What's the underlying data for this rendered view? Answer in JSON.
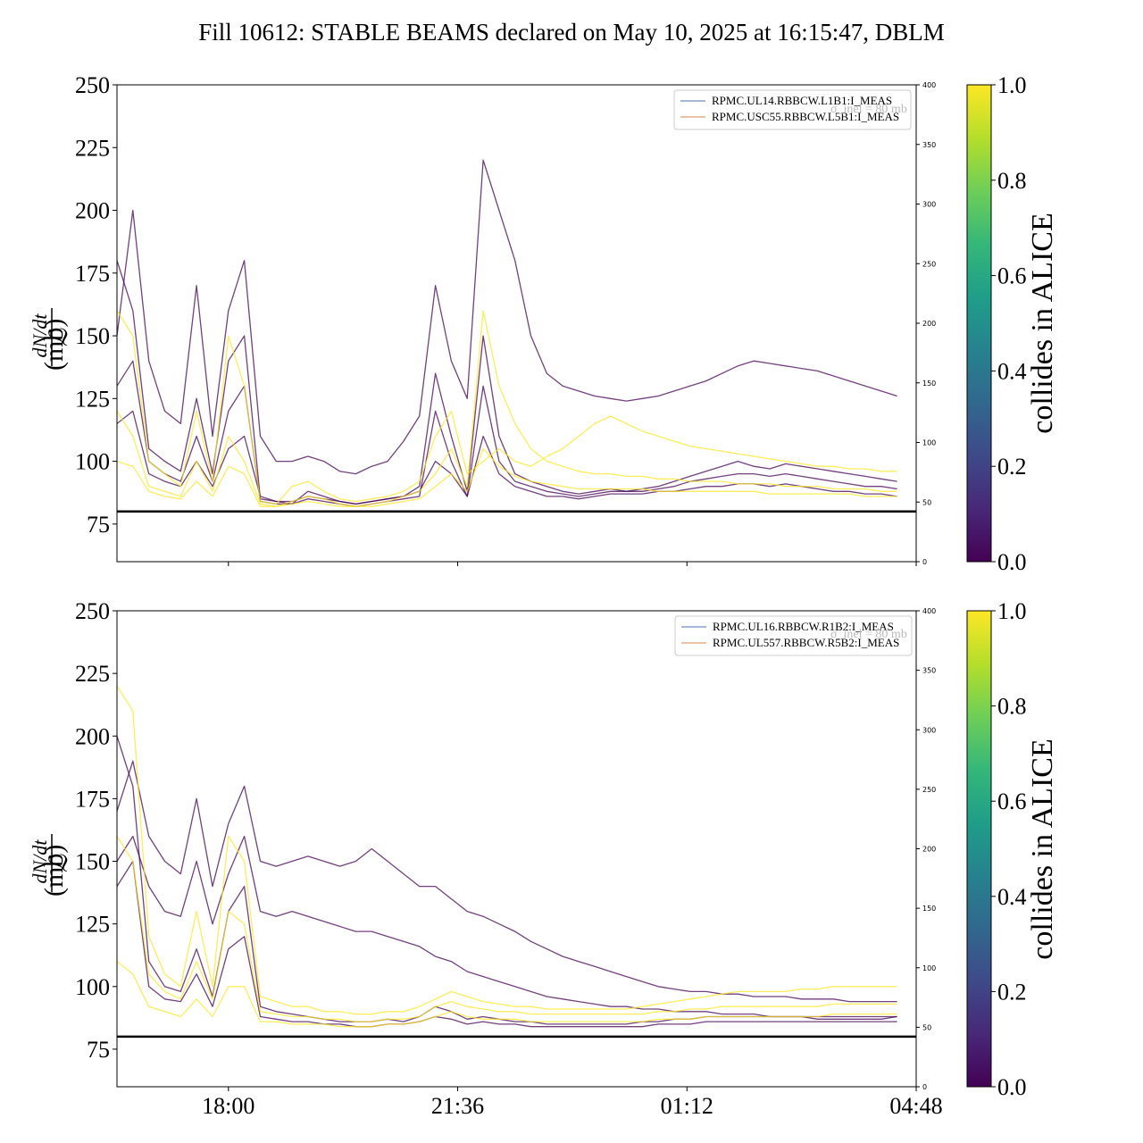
{
  "title": "Fill 10612: STABLE BEAMS declared on May 10, 2025 at 16:15:47, DBLM",
  "colors": {
    "viridis": [
      "#440154",
      "#482878",
      "#3e4a89",
      "#31688e",
      "#26828e",
      "#1f9e89",
      "#35b779",
      "#6ece58",
      "#b5de2b",
      "#fde725"
    ],
    "threshold_line": "#000000",
    "legend_series_1": "#4c72b0",
    "legend_series_2": "#dd8452"
  },
  "chart_data": [
    {
      "type": "line",
      "panel": "top",
      "ylabel_numerator": "dN/dt",
      "ylabel_denominator": "ℒ",
      "ylabel_unit": "(mb)",
      "ylim": [
        60,
        250
      ],
      "yticks": [
        "75",
        "100",
        "125",
        "150",
        "175",
        "200",
        "225",
        "250"
      ],
      "secondary_ylim": [
        0,
        400
      ],
      "secondary_yticks": [
        "0",
        "50",
        "100",
        "150",
        "200",
        "250",
        "300",
        "350",
        "400"
      ],
      "xlim": [
        "16:15",
        "04:48"
      ],
      "xticks": [
        "18:00",
        "21:36",
        "01:12",
        "04:48"
      ],
      "show_xtick_labels": false,
      "threshold": 80,
      "annotation": "σ_inel = 80 mb",
      "legend": [
        "RPMC.UL14.RBBCW.L1B1:I_MEAS",
        "RPMC.USC55.RBBCW.L5B1:I_MEAS"
      ],
      "legend_position": "top-right",
      "colorbar_label": "collides in ALICE",
      "colorbar_ticks": [
        "0.0",
        "0.2",
        "0.4",
        "0.6",
        "0.8",
        "1.0"
      ],
      "x": [
        "16:15",
        "16:30",
        "16:45",
        "17:00",
        "17:15",
        "17:30",
        "17:45",
        "18:00",
        "18:15",
        "18:30",
        "18:45",
        "19:00",
        "19:15",
        "19:30",
        "19:45",
        "20:00",
        "20:15",
        "20:30",
        "20:45",
        "21:00",
        "21:15",
        "21:30",
        "21:45",
        "22:00",
        "22:15",
        "22:30",
        "22:45",
        "23:00",
        "23:15",
        "23:30",
        "23:45",
        "00:00",
        "00:15",
        "00:30",
        "00:45",
        "01:00",
        "01:15",
        "01:30",
        "01:45",
        "02:00",
        "02:15",
        "02:30",
        "02:45",
        "03:00",
        "03:15",
        "03:30",
        "03:45",
        "04:00",
        "04:15",
        "04:30"
      ],
      "series": [
        {
          "collides": 0.0,
          "values": [
            180,
            160,
            105,
            100,
            96,
            125,
            95,
            140,
            150,
            85,
            84,
            83,
            88,
            86,
            84,
            83,
            84,
            85,
            86,
            90,
            135,
            110,
            88,
            150,
            110,
            95,
            92,
            90,
            88,
            87,
            88,
            89,
            88,
            89,
            90,
            92,
            94,
            96,
            98,
            100,
            98,
            97,
            99,
            98,
            97,
            96,
            95,
            94,
            93,
            92
          ]
        },
        {
          "collides": 0.0,
          "values": [
            130,
            140,
            100,
            95,
            92,
            110,
            92,
            120,
            130,
            84,
            83,
            83,
            85,
            84,
            83,
            82,
            83,
            84,
            85,
            86,
            120,
            100,
            86,
            130,
            100,
            92,
            90,
            88,
            87,
            86,
            87,
            88,
            88,
            88,
            89,
            90,
            92,
            93,
            94,
            95,
            95,
            94,
            95,
            94,
            93,
            92,
            91,
            90,
            90,
            89
          ]
        },
        {
          "collides": 0.0,
          "values": [
            115,
            120,
            95,
            92,
            90,
            100,
            90,
            105,
            110,
            86,
            84,
            84,
            86,
            85,
            84,
            83,
            84,
            85,
            86,
            88,
            100,
            95,
            86,
            110,
            95,
            90,
            88,
            86,
            86,
            85,
            86,
            87,
            87,
            87,
            88,
            88,
            89,
            90,
            90,
            91,
            91,
            90,
            91,
            90,
            89,
            88,
            88,
            87,
            87,
            86
          ]
        },
        {
          "collides": 0.05,
          "values": [
            150,
            200,
            140,
            120,
            115,
            170,
            110,
            160,
            180,
            110,
            100,
            100,
            102,
            100,
            96,
            95,
            98,
            100,
            108,
            118,
            170,
            140,
            125,
            220,
            200,
            180,
            150,
            135,
            130,
            128,
            126,
            125,
            124,
            125,
            126,
            128,
            130,
            132,
            135,
            138,
            140,
            139,
            138,
            137,
            136,
            134,
            132,
            130,
            128,
            126
          ]
        },
        {
          "collides": 1.0,
          "values": [
            160,
            150,
            100,
            95,
            90,
            120,
            92,
            150,
            130,
            84,
            83,
            90,
            92,
            88,
            85,
            84,
            85,
            86,
            88,
            92,
            110,
            120,
            95,
            100,
            105,
            100,
            98,
            102,
            105,
            110,
            115,
            118,
            115,
            112,
            110,
            108,
            106,
            105,
            104,
            103,
            102,
            101,
            100,
            99,
            98,
            98,
            97,
            97,
            96,
            96
          ]
        },
        {
          "collides": 1.0,
          "values": [
            120,
            110,
            90,
            88,
            86,
            100,
            88,
            110,
            100,
            83,
            82,
            84,
            86,
            85,
            83,
            82,
            83,
            84,
            86,
            88,
            95,
            105,
            90,
            160,
            130,
            115,
            105,
            100,
            98,
            96,
            95,
            95,
            94,
            94,
            93,
            93,
            92,
            92,
            92,
            91,
            91,
            91,
            90,
            90,
            90,
            89,
            89,
            89,
            88,
            88
          ]
        },
        {
          "collides": 1.0,
          "values": [
            100,
            98,
            88,
            86,
            85,
            92,
            86,
            98,
            95,
            82,
            82,
            83,
            84,
            83,
            82,
            82,
            82,
            83,
            84,
            85,
            90,
            95,
            88,
            105,
            98,
            94,
            92,
            91,
            90,
            89,
            89,
            89,
            89,
            89,
            88,
            88,
            88,
            88,
            88,
            88,
            88,
            87,
            87,
            87,
            87,
            87,
            87,
            86,
            86,
            86
          ]
        }
      ]
    },
    {
      "type": "line",
      "panel": "bottom",
      "ylabel_numerator": "dN/dt",
      "ylabel_denominator": "ℒ",
      "ylabel_unit": "(mb)",
      "ylim": [
        60,
        250
      ],
      "yticks": [
        "75",
        "100",
        "125",
        "150",
        "175",
        "200",
        "225",
        "250"
      ],
      "secondary_ylim": [
        0,
        400
      ],
      "secondary_yticks": [
        "0",
        "50",
        "100",
        "150",
        "200",
        "250",
        "300",
        "350",
        "400"
      ],
      "xlim": [
        "16:15",
        "04:48"
      ],
      "xticks": [
        "18:00",
        "21:36",
        "01:12",
        "04:48"
      ],
      "show_xtick_labels": true,
      "threshold": 80,
      "annotation": "σ_inel = 80 mb",
      "legend": [
        "RPMC.UL16.RBBCW.R1B2:I_MEAS",
        "RPMC.UL557.RBBCW.R5B2:I_MEAS"
      ],
      "legend_position": "top-right",
      "colorbar_label": "collides in ALICE",
      "colorbar_ticks": [
        "0.0",
        "0.2",
        "0.4",
        "0.6",
        "0.8",
        "1.0"
      ],
      "x": [
        "16:15",
        "16:30",
        "16:45",
        "17:00",
        "17:15",
        "17:30",
        "17:45",
        "18:00",
        "18:15",
        "18:30",
        "18:45",
        "19:00",
        "19:15",
        "19:30",
        "19:45",
        "20:00",
        "20:15",
        "20:30",
        "20:45",
        "21:00",
        "21:15",
        "21:30",
        "21:45",
        "22:00",
        "22:15",
        "22:30",
        "22:45",
        "23:00",
        "23:15",
        "23:30",
        "23:45",
        "00:00",
        "00:15",
        "00:30",
        "00:45",
        "01:00",
        "01:15",
        "01:30",
        "01:45",
        "02:00",
        "02:15",
        "02:30",
        "02:45",
        "03:00",
        "03:15",
        "03:30",
        "03:45",
        "04:00",
        "04:15",
        "04:30"
      ],
      "series": [
        {
          "collides": 0.0,
          "values": [
            200,
            180,
            110,
            100,
            98,
            115,
            96,
            130,
            140,
            92,
            90,
            89,
            88,
            87,
            86,
            86,
            86,
            87,
            86,
            88,
            92,
            90,
            87,
            88,
            87,
            86,
            86,
            85,
            85,
            85,
            85,
            85,
            85,
            86,
            86,
            87,
            87,
            88,
            88,
            88,
            88,
            88,
            88,
            88,
            87,
            87,
            87,
            87,
            87,
            88
          ]
        },
        {
          "collides": 0.0,
          "values": [
            140,
            150,
            100,
            95,
            94,
            105,
            92,
            115,
            120,
            88,
            87,
            86,
            86,
            85,
            85,
            84,
            84,
            85,
            85,
            86,
            88,
            87,
            85,
            86,
            85,
            85,
            84,
            84,
            84,
            84,
            84,
            84,
            84,
            84,
            85,
            85,
            85,
            86,
            86,
            86,
            86,
            86,
            86,
            86,
            86,
            86,
            86,
            86,
            86,
            86
          ]
        },
        {
          "collides": 0.05,
          "values": [
            170,
            190,
            160,
            150,
            145,
            175,
            140,
            165,
            180,
            150,
            148,
            150,
            152,
            150,
            148,
            150,
            155,
            150,
            145,
            140,
            140,
            135,
            130,
            128,
            125,
            122,
            118,
            115,
            112,
            110,
            108,
            106,
            104,
            102,
            100,
            99,
            98,
            98,
            97,
            97,
            96,
            96,
            96,
            95,
            95,
            95,
            94,
            94,
            94,
            94
          ]
        },
        {
          "collides": 0.05,
          "values": [
            150,
            160,
            140,
            130,
            128,
            150,
            125,
            145,
            160,
            130,
            128,
            130,
            128,
            126,
            124,
            122,
            122,
            120,
            118,
            116,
            112,
            110,
            106,
            104,
            102,
            100,
            98,
            96,
            95,
            94,
            93,
            92,
            92,
            91,
            91,
            90,
            90,
            90,
            89,
            89,
            89,
            88,
            88,
            88,
            88,
            88,
            88,
            88,
            88,
            88
          ]
        },
        {
          "collides": 1.0,
          "values": [
            220,
            210,
            120,
            105,
            100,
            130,
            100,
            160,
            150,
            96,
            94,
            92,
            92,
            90,
            90,
            89,
            89,
            90,
            90,
            92,
            95,
            98,
            96,
            94,
            93,
            92,
            92,
            91,
            91,
            91,
            91,
            91,
            91,
            92,
            93,
            94,
            95,
            96,
            97,
            98,
            98,
            98,
            98,
            99,
            99,
            100,
            100,
            100,
            100,
            100
          ]
        },
        {
          "collides": 1.0,
          "values": [
            160,
            150,
            105,
            98,
            95,
            110,
            95,
            130,
            125,
            90,
            89,
            88,
            88,
            87,
            87,
            86,
            86,
            87,
            87,
            88,
            92,
            94,
            92,
            91,
            90,
            90,
            89,
            89,
            89,
            89,
            89,
            89,
            89,
            89,
            90,
            90,
            91,
            91,
            92,
            92,
            92,
            92,
            92,
            92,
            92,
            93,
            93,
            93,
            93,
            93
          ]
        },
        {
          "collides": 1.0,
          "values": [
            110,
            105,
            92,
            90,
            88,
            95,
            88,
            100,
            100,
            86,
            86,
            85,
            85,
            85,
            84,
            84,
            84,
            85,
            85,
            86,
            88,
            90,
            88,
            87,
            87,
            87,
            86,
            86,
            86,
            86,
            86,
            86,
            86,
            86,
            87,
            87,
            87,
            88,
            88,
            88,
            88,
            88,
            88,
            88,
            88,
            89,
            89,
            89,
            89,
            89
          ]
        }
      ]
    }
  ]
}
